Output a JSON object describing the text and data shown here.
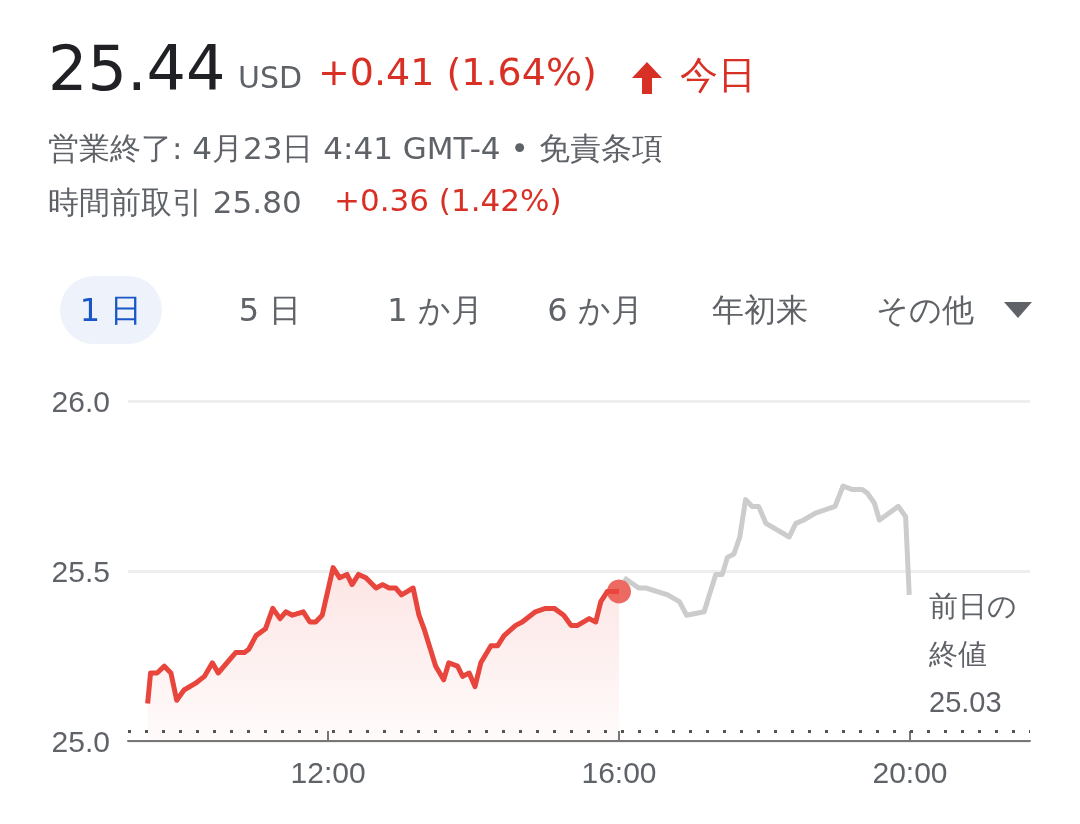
{
  "chart_data": {
    "type": "line",
    "title": "25.44",
    "annotations": [
      "USD",
      "+0.41 (1.64%)",
      "今日",
      "営業終了: 4月23日 4:41 GMT-4 • 免責条項",
      "時間前取引 25.80",
      "+0.36 (1.42%)",
      "1 日",
      "5 日",
      "1 か月",
      "6 か月",
      "年初来",
      "その他"
    ],
    "series": [
      {
        "type": "area",
        "color": "#e8453c",
        "x": [
          9.52,
          9.56,
          9.65,
          9.75,
          9.84,
          9.92,
          10.02,
          10.18,
          10.3,
          10.41,
          10.49,
          10.73,
          10.85,
          10.91,
          11.01,
          11.14,
          11.24,
          11.34,
          11.42,
          11.51,
          11.66,
          11.75,
          11.83,
          11.92,
          12.07,
          12.16,
          12.26,
          12.33,
          12.42,
          12.52,
          12.66,
          12.75,
          12.84,
          12.93,
          13.01,
          13.17,
          13.25,
          13.32,
          13.48,
          13.59,
          13.66,
          13.78,
          13.85,
          13.94,
          14.02,
          14.1,
          14.24,
          14.33,
          14.42,
          14.58,
          14.67,
          14.85,
          14.99,
          15.11,
          15.24,
          15.34,
          15.43,
          15.59,
          15.68,
          15.75,
          15.84,
          16.0
        ],
        "values": [
          25.11,
          25.2,
          25.2,
          25.22,
          25.2,
          25.12,
          25.15,
          25.17,
          25.19,
          25.23,
          25.2,
          25.26,
          25.26,
          25.27,
          25.31,
          25.33,
          25.39,
          25.36,
          25.38,
          25.37,
          25.38,
          25.35,
          25.35,
          25.37,
          25.51,
          25.48,
          25.49,
          25.46,
          25.49,
          25.48,
          25.45,
          25.46,
          25.45,
          25.45,
          25.43,
          25.45,
          25.37,
          25.33,
          25.22,
          25.18,
          25.23,
          25.22,
          25.19,
          25.2,
          25.16,
          25.23,
          25.28,
          25.28,
          25.31,
          25.34,
          25.35,
          25.38,
          25.39,
          25.39,
          25.37,
          25.34,
          25.34,
          25.36,
          25.35,
          25.41,
          25.44,
          25.44
        ]
      },
      {
        "color": "#cccccc",
        "x": [
          16.07,
          16.27,
          16.37,
          16.67,
          16.83,
          16.93,
          17.17,
          17.33,
          17.42,
          17.49,
          17.58,
          17.66,
          17.74,
          17.83,
          17.92,
          18.02,
          18.34,
          18.43,
          18.54,
          18.7,
          18.97,
          19.08,
          19.2,
          19.34,
          19.41,
          19.51,
          19.58,
          19.84,
          19.94,
          19.99
        ],
        "values": [
          25.48,
          25.45,
          25.45,
          25.43,
          25.41,
          25.37,
          25.38,
          25.49,
          25.49,
          25.54,
          25.55,
          25.6,
          25.71,
          25.69,
          25.69,
          25.64,
          25.6,
          25.64,
          25.65,
          25.67,
          25.69,
          25.75,
          25.74,
          25.74,
          25.73,
          25.7,
          25.65,
          25.69,
          25.66,
          25.43
        ]
      },
      {
        "type": "scatter",
        "color": "#e8453c",
        "x": [
          16.0
        ],
        "values": [
          25.44
        ]
      }
    ],
    "xlim": [
      9.25,
      21.65
    ],
    "xticks": [
      {
        "value": 12,
        "label": "12:00"
      },
      {
        "value": 16,
        "label": "16:00"
      },
      {
        "value": 20,
        "label": "20:00"
      }
    ],
    "ylim": [
      25,
      26
    ],
    "yticks": [
      {
        "value": 25,
        "label": "25.0"
      },
      25.5,
      {
        "value": 26,
        "label": "26.0"
      }
    ],
    "grid": "y",
    "ref_lines": [
      {
        "axis": "y",
        "value": 25.03,
        "label": "前日の終値\n25.03",
        "color": "#555555",
        "line_style": "dotted"
      }
    ]
  }
}
